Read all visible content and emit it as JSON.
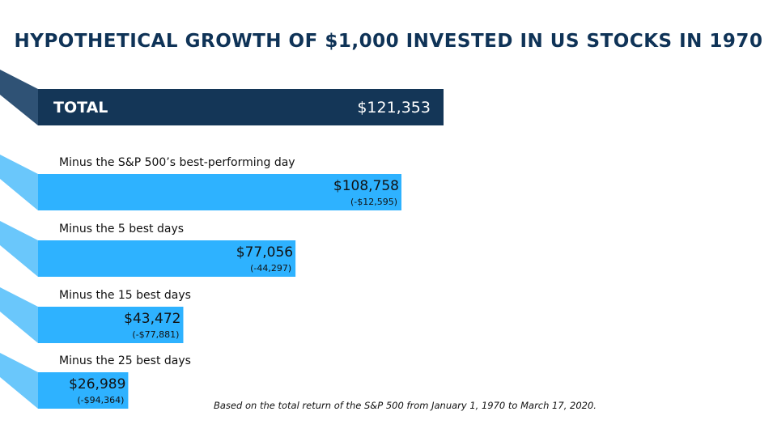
{
  "chart_data": {
    "type": "bar",
    "title": "HYPOTHETICAL GROWTH OF $1,000 INVESTED IN US STOCKS IN 1970",
    "categories": [
      "TOTAL",
      "Minus the S&P 500’s best-performing day",
      "Minus the 5 best days",
      "Minus the 15 best days",
      "Minus the 25 best days"
    ],
    "values": [
      121353,
      108758,
      77056,
      43472,
      26989
    ],
    "value_labels": [
      "$121,353",
      "$108,758",
      "$77,056",
      "$43,472",
      "$26,989"
    ],
    "difference_labels": [
      "",
      "(-$12,595)",
      "(-44,297)",
      "(-$77,881)",
      "(-$94,364)"
    ],
    "orientation": "horizontal",
    "xlim": [
      0,
      121353
    ],
    "grid": false,
    "legend": "none",
    "footnote": "Based on the total return of the S&P 500 from January 1, 1970 to March 17, 2020.",
    "colors": {
      "total_bar": "#143657",
      "total_flap": "#2f5275",
      "bar": "#2eb2ff",
      "flap": "#6ac7fb",
      "title": "#0f3357",
      "text": "#111111",
      "total_text": "#ffffff"
    }
  }
}
